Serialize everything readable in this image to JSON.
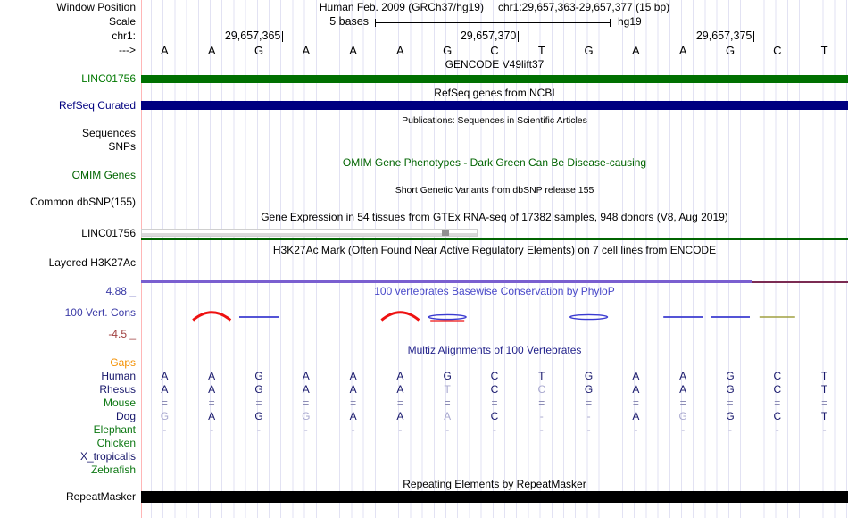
{
  "header": {
    "assembly_title": "Human Feb. 2009 (GRCh37/hg19)",
    "position_title": "chr1:29,657,363-29,657,377 (15 bp)",
    "window_position_label": "Window Position",
    "scale_label": "Scale",
    "scale_value": "5 bases",
    "scale_assembly": "hg19",
    "chrom_label": "chr1:",
    "strand_label": "--->",
    "coordinate_ticks": [
      {
        "label": "29,657,365",
        "base": 3
      },
      {
        "label": "29,657,370",
        "base": 8
      },
      {
        "label": "29,657,375",
        "base": 13
      }
    ],
    "sequence": [
      "A",
      "A",
      "G",
      "A",
      "A",
      "A",
      "G",
      "C",
      "T",
      "G",
      "A",
      "A",
      "G",
      "C",
      "T"
    ]
  },
  "tracks": {
    "gencode": {
      "title": "GENCODE V49lift37",
      "label": "LINC01756",
      "bar_color": "#007000"
    },
    "refseq": {
      "title": "RefSeq genes from NCBI",
      "label": "RefSeq Curated",
      "bar_color": "#000080"
    },
    "publications": {
      "title": "Publications: Sequences in Scientific Articles",
      "label_sequences": "Sequences",
      "label_snps": "SNPs"
    },
    "omim": {
      "title": "OMIM Gene Phenotypes - Dark Green Can Be Disease-causing",
      "label": "OMIM Genes"
    },
    "dbsnp": {
      "title": "Short Genetic Variants from dbSNP release 155",
      "label": "Common dbSNP(155)"
    },
    "gtex": {
      "title": "Gene Expression in 54 tissues from GTEx RNA-seq of 17382 samples, 948 donors (V8, Aug 2019)",
      "label": "LINC01756",
      "line_color": "#006400",
      "slider_handle_color": "#909090"
    },
    "h3k27ac": {
      "title": "H3K27Ac Mark (Often Found Near Active Regulatory Elements) on 7 cell lines from ENCODE",
      "label": "Layered H3K27Ac",
      "signal_color": "#7a5fd0",
      "signal_color_right": "#7b2b52"
    },
    "phylop": {
      "title": "100 vertebrates Basewise Conservation by PhyloP",
      "label": "100 Vert. Cons",
      "axis_max": "4.88 _",
      "axis_min": "-4.5 _",
      "positive_color": "#ee1111",
      "negative_color": "#3b3bd1",
      "neutral_color": "#a0a040"
    },
    "repeatmasker": {
      "title": "Repeating Elements by RepeatMasker",
      "label": "RepeatMasker",
      "bar_color": "#000000"
    }
  },
  "conservation": {
    "marks": [
      {
        "base": 2,
        "type": "arc_up"
      },
      {
        "base": 3,
        "type": "blue_flat"
      },
      {
        "base": 6,
        "type": "arc_up"
      },
      {
        "base": 7,
        "type": "blue_lens_red"
      },
      {
        "base": 10,
        "type": "blue_lens"
      },
      {
        "base": 12,
        "type": "blue_flat"
      },
      {
        "base": 13,
        "type": "blue_flat"
      },
      {
        "base": 14,
        "type": "olive_flat"
      }
    ]
  },
  "multiz": {
    "title": "Multiz Alignments of 100 Vertebrates",
    "species": [
      {
        "name": "Gaps",
        "color": "#f39000",
        "cells": []
      },
      {
        "name": "Human",
        "color": "#17176b",
        "cells": [
          [
            "A",
            "d"
          ],
          [
            "A",
            "d"
          ],
          [
            "G",
            "d"
          ],
          [
            "A",
            "d"
          ],
          [
            "A",
            "d"
          ],
          [
            "A",
            "d"
          ],
          [
            "G",
            "d"
          ],
          [
            "C",
            "d"
          ],
          [
            "T",
            "d"
          ],
          [
            "G",
            "d"
          ],
          [
            "A",
            "d"
          ],
          [
            "A",
            "d"
          ],
          [
            "G",
            "d"
          ],
          [
            "C",
            "d"
          ],
          [
            "T",
            "d"
          ]
        ]
      },
      {
        "name": "Rhesus",
        "color": "#17176b",
        "cells": [
          [
            "A",
            "d"
          ],
          [
            "A",
            "d"
          ],
          [
            "G",
            "d"
          ],
          [
            "A",
            "d"
          ],
          [
            "A",
            "d"
          ],
          [
            "A",
            "d"
          ],
          [
            "T",
            "l"
          ],
          [
            "C",
            "d"
          ],
          [
            "C",
            "l"
          ],
          [
            "G",
            "d"
          ],
          [
            "A",
            "d"
          ],
          [
            "A",
            "d"
          ],
          [
            "G",
            "d"
          ],
          [
            "C",
            "d"
          ],
          [
            "T",
            "d"
          ]
        ]
      },
      {
        "name": "Mouse",
        "color": "#0d7813",
        "cells": [
          [
            "=",
            "m"
          ],
          [
            "=",
            "m"
          ],
          [
            "=",
            "m"
          ],
          [
            "=",
            "m"
          ],
          [
            "=",
            "m"
          ],
          [
            "=",
            "m"
          ],
          [
            "=",
            "m"
          ],
          [
            "=",
            "m"
          ],
          [
            "=",
            "m"
          ],
          [
            "=",
            "m"
          ],
          [
            "=",
            "m"
          ],
          [
            "=",
            "m"
          ],
          [
            "=",
            "m"
          ],
          [
            "=",
            "m"
          ],
          [
            "=",
            "m"
          ]
        ]
      },
      {
        "name": "Dog",
        "color": "#17176b",
        "cells": [
          [
            "G",
            "l"
          ],
          [
            "A",
            "d"
          ],
          [
            "G",
            "d"
          ],
          [
            "G",
            "l"
          ],
          [
            "A",
            "d"
          ],
          [
            "A",
            "d"
          ],
          [
            "A",
            "l"
          ],
          [
            "C",
            "d"
          ],
          [
            "-",
            "l"
          ],
          [
            "-",
            "l"
          ],
          [
            "A",
            "d"
          ],
          [
            "G",
            "l"
          ],
          [
            "G",
            "d"
          ],
          [
            "C",
            "d"
          ],
          [
            "T",
            "d"
          ]
        ]
      },
      {
        "name": "Elephant",
        "color": "#0d7813",
        "cells": [
          [
            "-",
            "l"
          ],
          [
            "-",
            "l"
          ],
          [
            "-",
            "l"
          ],
          [
            "-",
            "l"
          ],
          [
            "-",
            "l"
          ],
          [
            "-",
            "l"
          ],
          [
            "-",
            "l"
          ],
          [
            "-",
            "l"
          ],
          [
            "-",
            "l"
          ],
          [
            "-",
            "l"
          ],
          [
            "-",
            "l"
          ],
          [
            "-",
            "l"
          ],
          [
            "-",
            "l"
          ],
          [
            "-",
            "l"
          ],
          [
            "-",
            "l"
          ]
        ]
      },
      {
        "name": "Chicken",
        "color": "#0d7813",
        "cells": []
      },
      {
        "name": "X_tropicalis",
        "color": "#17176b",
        "cells": []
      },
      {
        "name": "Zebrafish",
        "color": "#0d7813",
        "cells": []
      }
    ]
  },
  "colors": {
    "grid": "#e2e2f3",
    "left_edge_line": "#ffb6b6",
    "gencode_green": "#007000",
    "refseq_navy": "#000080",
    "omim_green": "#006400",
    "phylop_title_blue": "#4949c9",
    "multiz_title_navy": "#24248c",
    "species_navy": "#17176b",
    "species_green": "#0d7813",
    "gaps_orange": "#f39000"
  }
}
